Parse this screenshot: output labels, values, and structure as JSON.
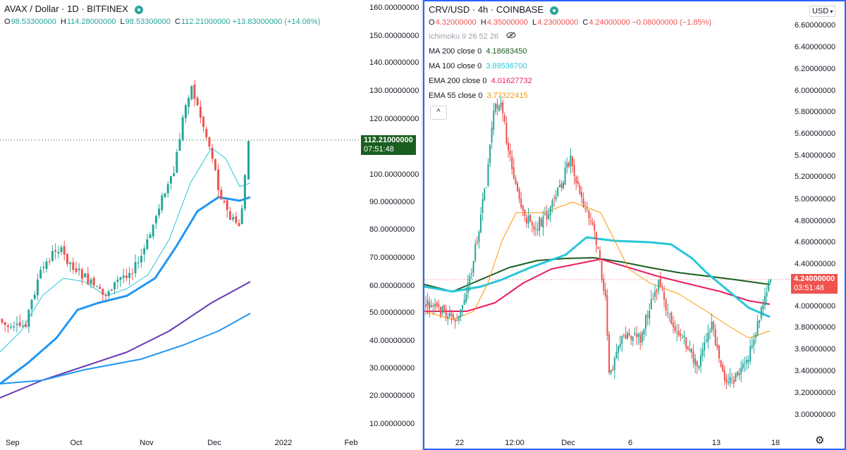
{
  "left": {
    "symbol": "AVAX / Dollar · 1D · BITFINEX",
    "ohlc": {
      "o": "98.53300000",
      "h": "114.28000000",
      "l": "98.53300000",
      "c": "112.21000000",
      "chg": "+13.83000000 (+14.06%)"
    },
    "price_tag": {
      "value": "112.21000000",
      "timer": "07:51:48"
    },
    "price_axis": [
      "160.00000000",
      "150.00000000",
      "140.00000000",
      "130.00000000",
      "120.00000000",
      "100.00000000",
      "90.00000000",
      "80.00000000",
      "70.00000000",
      "60.00000000",
      "50.00000000",
      "40.00000000",
      "30.00000000",
      "20.00000000",
      "10.00000000"
    ],
    "time_axis": [
      "Sep",
      "Oct",
      "Nov",
      "Dec",
      "2022",
      "Feb"
    ]
  },
  "right": {
    "symbol": "CRV/USD · 4h · COINBASE",
    "ohlc": {
      "o": "4.32000000",
      "h": "4.35000000",
      "l": "4.23000000",
      "c": "4.24000000",
      "chg": "−0.08000000 (−1.85%)"
    },
    "indicators": [
      {
        "name": "Ichimoku 9 26 52 26",
        "value": "",
        "color": "#a0a3ad"
      },
      {
        "name": "MA 200 close 0",
        "value": "4.18683450",
        "color": "#1b5e20"
      },
      {
        "name": "MA 100 close 0",
        "value": "3.89536700",
        "color": "#26c6da"
      },
      {
        "name": "EMA 200 close 0",
        "value": "4.01627732",
        "color": "#e91e63"
      },
      {
        "name": "EMA 55 close 0",
        "value": "3.77322415",
        "color": "#ff9800"
      }
    ],
    "collapse_label": "^",
    "currency": "USD",
    "price_tag": {
      "value": "4.24000000",
      "timer": "03:51:48"
    },
    "price_axis": [
      "6.60000000",
      "6.40000000",
      "6.20000000",
      "6.00000000",
      "5.80000000",
      "5.60000000",
      "5.40000000",
      "5.20000000",
      "5.00000000",
      "4.80000000",
      "4.60000000",
      "4.40000000",
      "4.00000000",
      "3.80000000",
      "3.60000000",
      "3.40000000",
      "3.20000000",
      "3.00000000"
    ],
    "time_axis": [
      "22",
      "12:00",
      "Dec",
      "6",
      "13",
      "18"
    ],
    "settings_icon": "gear-icon"
  },
  "colors": {
    "up": "#26a69a",
    "down": "#ef5350",
    "avax_tag": "#1b5e20",
    "crv_tag": "#ef5350"
  }
}
